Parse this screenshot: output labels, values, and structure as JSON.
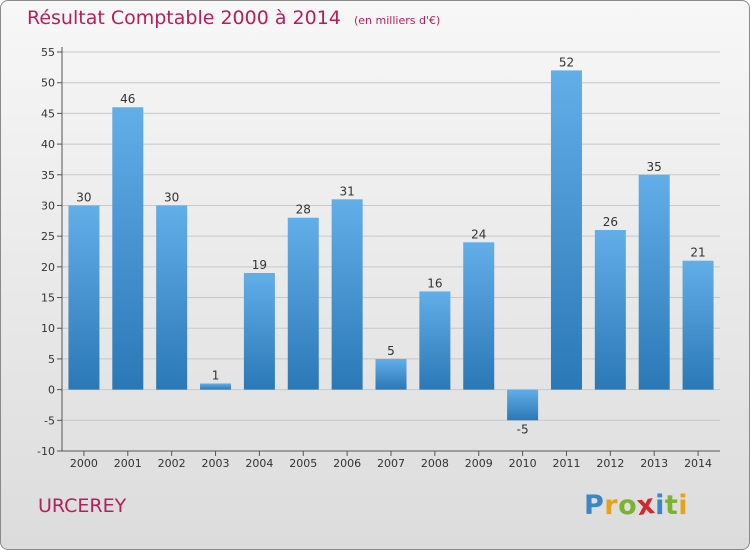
{
  "header": {
    "title": "Résultat Comptable 2000 à 2014",
    "subtitle": "(en milliers d'€)"
  },
  "footer": {
    "commune": "URCEREY"
  },
  "logo": {
    "text": "Proxiti",
    "letters": [
      "P",
      "r",
      "o",
      "x",
      "i",
      "t",
      "i"
    ],
    "letter_colors": [
      "#3a86c8",
      "#e8a21a",
      "#7ab32e",
      "#d2282e",
      "#3a86c8",
      "#7ab32e",
      "#e8a21a"
    ]
  },
  "colors": {
    "title": "#b5205a",
    "bar_light": "#62aee9",
    "bar_dark": "#2a78b6",
    "grid": "#c8c8c8",
    "axis": "#555555",
    "text": "#333333"
  },
  "chart_data": {
    "type": "bar",
    "title": "Résultat Comptable 2000 à 2014",
    "subtitle": "(en milliers d'€)",
    "categories": [
      "2000",
      "2001",
      "2002",
      "2003",
      "2004",
      "2005",
      "2006",
      "2007",
      "2008",
      "2009",
      "2010",
      "2011",
      "2012",
      "2013",
      "2014"
    ],
    "values": [
      30,
      46,
      30,
      1,
      19,
      28,
      31,
      5,
      16,
      24,
      -5,
      52,
      26,
      35,
      21
    ],
    "ylim": [
      -10,
      55
    ],
    "yticks": [
      -10,
      -5,
      0,
      5,
      10,
      15,
      20,
      25,
      30,
      35,
      40,
      45,
      50,
      55
    ],
    "grid": true,
    "legend": "none"
  }
}
